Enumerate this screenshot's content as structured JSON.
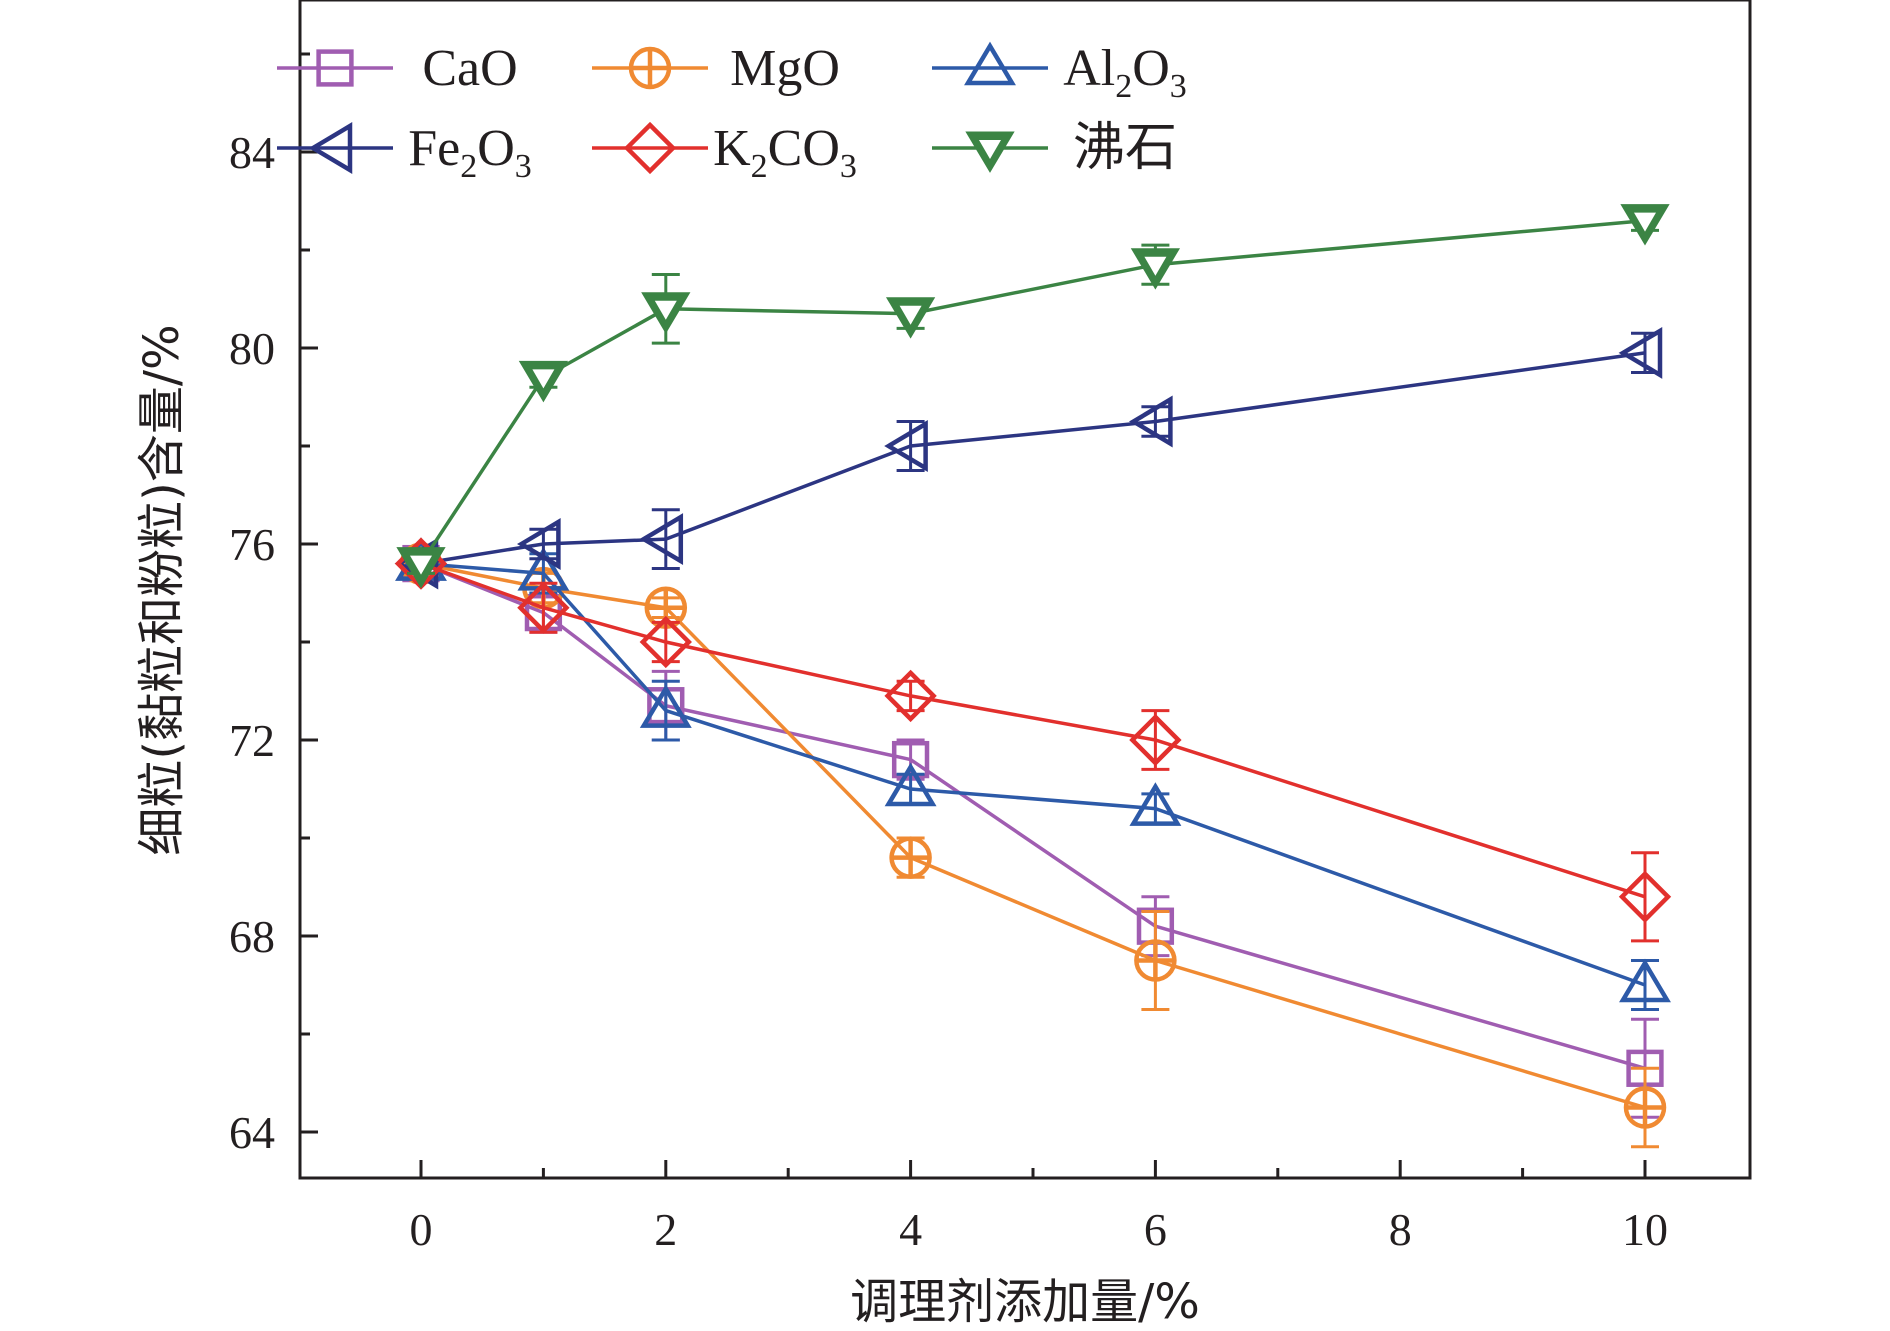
{
  "chart_data": {
    "type": "line",
    "xlabel": "调理剂添加量/%",
    "ylabel": "细粒(黏粒和粉粒)含量/%",
    "xlim": [
      -1,
      11
    ],
    "ylim": [
      63,
      87
    ],
    "xticks": [
      0,
      2,
      4,
      6,
      8,
      10
    ],
    "yticks": [
      64,
      68,
      72,
      76,
      80,
      84
    ],
    "legend_position": "top-left (inside plot, 3 columns)",
    "series": [
      {
        "name": "CaO",
        "legend_main": "CaO",
        "legend_sub": "",
        "legend_main2": "",
        "legend_sub2": "",
        "color": "#a05db1",
        "marker": "square",
        "x": [
          0,
          1,
          2,
          4,
          6,
          10
        ],
        "y": [
          75.6,
          74.6,
          72.7,
          71.6,
          68.2,
          65.3
        ],
        "err": [
          0.2,
          0.4,
          0.7,
          0.4,
          0.6,
          1.0
        ]
      },
      {
        "name": "MgO",
        "legend_main": "MgO",
        "legend_sub": "",
        "legend_main2": "",
        "legend_sub2": "",
        "color": "#f08a32",
        "marker": "circle-plus",
        "x": [
          0,
          1,
          2,
          4,
          6,
          10
        ],
        "y": [
          75.6,
          75.1,
          74.7,
          69.6,
          67.5,
          64.5
        ],
        "err": [
          0.2,
          0.3,
          0.2,
          0.4,
          1.0,
          0.8
        ]
      },
      {
        "name": "Al2O3",
        "legend_main": "Al",
        "legend_sub": "2",
        "legend_main2": "O",
        "legend_sub2": "3",
        "color": "#2d5aa8",
        "marker": "triangle-up",
        "x": [
          0,
          1,
          2,
          4,
          6,
          10
        ],
        "y": [
          75.6,
          75.4,
          72.6,
          71.0,
          70.6,
          67.0
        ],
        "err": [
          0.2,
          0.4,
          0.6,
          0.3,
          0.3,
          0.5
        ]
      },
      {
        "name": "Fe2O3",
        "legend_main": "Fe",
        "legend_sub": "2",
        "legend_main2": "O",
        "legend_sub2": "3",
        "color": "#2c3582",
        "marker": "triangle-left",
        "x": [
          0,
          1,
          2,
          4,
          6,
          10
        ],
        "y": [
          75.6,
          76.0,
          76.1,
          78.0,
          78.5,
          79.9
        ],
        "err": [
          0.2,
          0.3,
          0.6,
          0.5,
          0.3,
          0.4
        ]
      },
      {
        "name": "K2CO3",
        "legend_main": "K",
        "legend_sub": "2",
        "legend_main2": "CO",
        "legend_sub2": "3",
        "color": "#e2302d",
        "marker": "diamond",
        "x": [
          0,
          1,
          2,
          4,
          6,
          10
        ],
        "y": [
          75.6,
          74.7,
          74.0,
          72.9,
          72.0,
          68.8
        ],
        "err": [
          0.2,
          0.5,
          0.4,
          0.3,
          0.6,
          0.9
        ]
      },
      {
        "name": "沸石",
        "legend_main": "沸石",
        "legend_sub": "",
        "legend_main2": "",
        "legend_sub2": "",
        "color": "#3b8444",
        "marker": "triangle-down",
        "x": [
          0,
          1,
          2,
          4,
          6,
          10
        ],
        "y": [
          75.6,
          79.4,
          80.8,
          80.7,
          81.7,
          82.6
        ],
        "err": [
          0.2,
          0.2,
          0.7,
          0.3,
          0.4,
          0.2
        ]
      }
    ]
  }
}
